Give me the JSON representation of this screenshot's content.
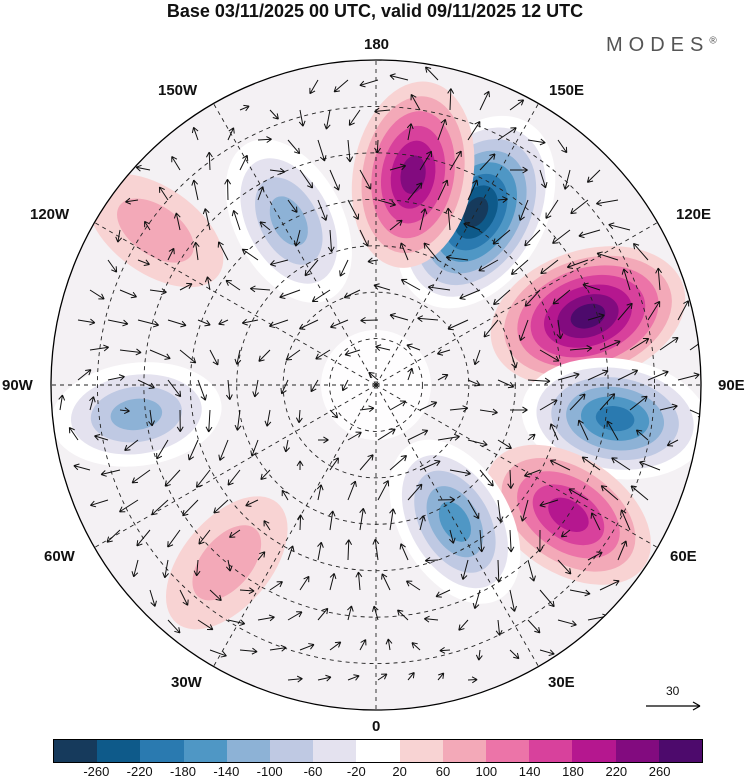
{
  "title": "Base 03/11/2025 00 UTC, valid 09/11/2025 12 UTC",
  "brand": "MODES",
  "brand_mark": "®",
  "longitude_labels": {
    "n180": "180",
    "w150": "150W",
    "e150": "150E",
    "w120": "120W",
    "e120": "120E",
    "w90": "90W",
    "e90": "90E",
    "w60": "60W",
    "e60": "60E",
    "w30": "30W",
    "e30": "30E",
    "s0": "0"
  },
  "reference_vector": {
    "label": "30"
  },
  "colorbar": {
    "colors": [
      "#163a5c",
      "#0e5a8a",
      "#2a7ab0",
      "#4f97c5",
      "#8db2d6",
      "#bfc9e3",
      "#e4e2ef",
      "#ffffff",
      "#f8d3d3",
      "#f3a9b8",
      "#ec74a8",
      "#d8419c",
      "#b5178f",
      "#820b7f",
      "#4d0a6c"
    ],
    "tick_labels": [
      "-260",
      "-220",
      "-180",
      "-140",
      "-100",
      "-60",
      "-20",
      "20",
      "60",
      "100",
      "140",
      "180",
      "220",
      "260"
    ]
  },
  "anomaly_centers": [
    {
      "name": "neg-120w",
      "lon": 150,
      "lat": 47,
      "value": -280
    },
    {
      "name": "pos-150w",
      "lon": 170,
      "lat": 44,
      "value": 200
    },
    {
      "name": "pos-110w",
      "lon": 108,
      "lat": 42,
      "value": 250
    },
    {
      "name": "neg-95w",
      "lon": 82,
      "lat": 38,
      "value": -200
    },
    {
      "name": "pos-70w",
      "lon": 56,
      "lat": 40,
      "value": 180
    },
    {
      "name": "neg-170e",
      "lon": 208,
      "lat": 50,
      "value": -150
    },
    {
      "name": "neg-40w",
      "lon": 30,
      "lat": 56,
      "value": -160
    },
    {
      "name": "neg-95e",
      "lon": 277,
      "lat": 38,
      "value": -130
    },
    {
      "name": "pos-50e",
      "lon": 320,
      "lat": 40,
      "value": 70
    },
    {
      "name": "pos-130e",
      "lon": 235,
      "lat": 32,
      "value": 60
    }
  ]
}
